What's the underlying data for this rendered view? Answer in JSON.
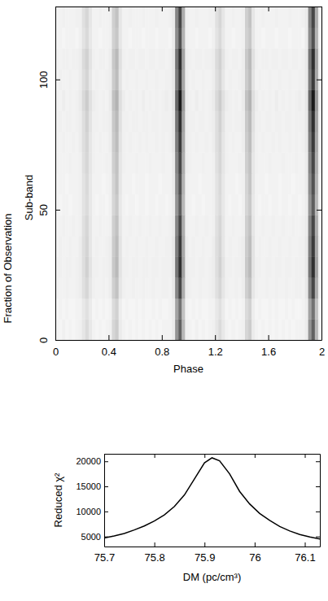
{
  "chart_data": [
    {
      "type": "heatmap",
      "x_label": "Phase",
      "y_label": "Sub-band",
      "side_label": "Fraction of Observation",
      "xlim": [
        0,
        2
      ],
      "ylim": [
        0,
        128
      ],
      "xticks": [
        0,
        0.4,
        0.8,
        1.2,
        1.6,
        2
      ],
      "yticks": [
        0,
        50,
        100
      ],
      "zlim": [
        0,
        1
      ],
      "x_bins": [
        0,
        0.025,
        0.05,
        0.075,
        0.1,
        0.125,
        0.15,
        0.175,
        0.2,
        0.225,
        0.25,
        0.275,
        0.3,
        0.325,
        0.35,
        0.375,
        0.4,
        0.425,
        0.45,
        0.475,
        0.5,
        0.525,
        0.55,
        0.575,
        0.6,
        0.625,
        0.65,
        0.675,
        0.7,
        0.725,
        0.75,
        0.775,
        0.8,
        0.825,
        0.85,
        0.875,
        0.9,
        0.925,
        0.95,
        0.975,
        1
      ],
      "y_bins": [
        0,
        8,
        16,
        24,
        32,
        40,
        48,
        56,
        64,
        72,
        80,
        88,
        96,
        104,
        112,
        120,
        128
      ],
      "cells": [
        [
          0.05,
          0.04,
          0.06,
          0.04,
          0.05,
          0.04,
          0.05,
          0.06,
          0.1,
          0.14,
          0.09,
          0.05,
          0.04,
          0.05,
          0.04,
          0.05,
          0.06,
          0.16,
          0.2,
          0.08,
          0.05,
          0.04,
          0.05,
          0.04,
          0.05,
          0.04,
          0.05,
          0.04,
          0.05,
          0.04,
          0.05,
          0.04,
          0.05,
          0.05,
          0.05,
          0.08,
          0.42,
          0.62,
          0.28,
          0.06
        ],
        [
          0.04,
          0.05,
          0.04,
          0.05,
          0.04,
          0.04,
          0.05,
          0.05,
          0.09,
          0.12,
          0.08,
          0.04,
          0.05,
          0.04,
          0.05,
          0.04,
          0.05,
          0.14,
          0.18,
          0.07,
          0.04,
          0.05,
          0.04,
          0.04,
          0.05,
          0.04,
          0.05,
          0.04,
          0.04,
          0.05,
          0.04,
          0.05,
          0.04,
          0.04,
          0.05,
          0.07,
          0.36,
          0.55,
          0.24,
          0.05
        ],
        [
          0.06,
          0.05,
          0.05,
          0.06,
          0.05,
          0.05,
          0.06,
          0.07,
          0.12,
          0.16,
          0.1,
          0.06,
          0.05,
          0.05,
          0.06,
          0.05,
          0.07,
          0.19,
          0.24,
          0.1,
          0.06,
          0.05,
          0.05,
          0.06,
          0.05,
          0.05,
          0.06,
          0.05,
          0.05,
          0.06,
          0.05,
          0.05,
          0.06,
          0.06,
          0.05,
          0.09,
          0.48,
          0.72,
          0.32,
          0.07
        ],
        [
          0.06,
          0.06,
          0.05,
          0.06,
          0.06,
          0.05,
          0.06,
          0.07,
          0.13,
          0.18,
          0.11,
          0.06,
          0.06,
          0.05,
          0.06,
          0.06,
          0.07,
          0.21,
          0.27,
          0.11,
          0.06,
          0.06,
          0.05,
          0.06,
          0.06,
          0.05,
          0.06,
          0.06,
          0.05,
          0.06,
          0.06,
          0.05,
          0.06,
          0.06,
          0.06,
          0.09,
          0.54,
          0.81,
          0.36,
          0.07
        ],
        [
          0.05,
          0.06,
          0.05,
          0.05,
          0.06,
          0.05,
          0.05,
          0.07,
          0.13,
          0.17,
          0.1,
          0.05,
          0.06,
          0.05,
          0.05,
          0.06,
          0.07,
          0.2,
          0.26,
          0.11,
          0.05,
          0.06,
          0.05,
          0.05,
          0.06,
          0.05,
          0.05,
          0.06,
          0.05,
          0.05,
          0.06,
          0.05,
          0.05,
          0.06,
          0.06,
          0.09,
          0.51,
          0.77,
          0.34,
          0.07
        ],
        [
          0.05,
          0.05,
          0.06,
          0.05,
          0.05,
          0.06,
          0.05,
          0.06,
          0.12,
          0.16,
          0.1,
          0.05,
          0.05,
          0.06,
          0.05,
          0.05,
          0.06,
          0.19,
          0.24,
          0.1,
          0.05,
          0.05,
          0.06,
          0.05,
          0.05,
          0.06,
          0.05,
          0.05,
          0.06,
          0.05,
          0.05,
          0.06,
          0.05,
          0.05,
          0.06,
          0.08,
          0.48,
          0.72,
          0.32,
          0.06
        ],
        [
          0.05,
          0.04,
          0.05,
          0.05,
          0.04,
          0.05,
          0.05,
          0.06,
          0.11,
          0.14,
          0.09,
          0.05,
          0.04,
          0.05,
          0.05,
          0.04,
          0.06,
          0.16,
          0.21,
          0.09,
          0.05,
          0.04,
          0.05,
          0.05,
          0.04,
          0.05,
          0.05,
          0.04,
          0.05,
          0.05,
          0.04,
          0.05,
          0.05,
          0.04,
          0.05,
          0.07,
          0.42,
          0.63,
          0.28,
          0.06
        ],
        [
          0.05,
          0.05,
          0.05,
          0.04,
          0.05,
          0.05,
          0.05,
          0.06,
          0.11,
          0.15,
          0.09,
          0.05,
          0.05,
          0.05,
          0.04,
          0.05,
          0.06,
          0.17,
          0.23,
          0.1,
          0.05,
          0.05,
          0.05,
          0.04,
          0.05,
          0.05,
          0.05,
          0.04,
          0.05,
          0.05,
          0.05,
          0.04,
          0.05,
          0.05,
          0.05,
          0.08,
          0.45,
          0.68,
          0.3,
          0.06
        ],
        [
          0.06,
          0.05,
          0.05,
          0.05,
          0.06,
          0.05,
          0.05,
          0.06,
          0.12,
          0.16,
          0.1,
          0.06,
          0.05,
          0.05,
          0.05,
          0.06,
          0.06,
          0.19,
          0.24,
          0.1,
          0.06,
          0.05,
          0.05,
          0.05,
          0.06,
          0.05,
          0.05,
          0.05,
          0.06,
          0.05,
          0.05,
          0.05,
          0.06,
          0.05,
          0.05,
          0.08,
          0.48,
          0.72,
          0.32,
          0.07
        ],
        [
          0.06,
          0.05,
          0.06,
          0.05,
          0.05,
          0.06,
          0.05,
          0.07,
          0.13,
          0.17,
          0.1,
          0.06,
          0.05,
          0.06,
          0.05,
          0.05,
          0.07,
          0.2,
          0.26,
          0.11,
          0.06,
          0.05,
          0.06,
          0.05,
          0.05,
          0.06,
          0.05,
          0.06,
          0.05,
          0.05,
          0.06,
          0.05,
          0.06,
          0.05,
          0.06,
          0.09,
          0.51,
          0.77,
          0.34,
          0.07
        ],
        [
          0.06,
          0.06,
          0.05,
          0.06,
          0.06,
          0.05,
          0.06,
          0.07,
          0.13,
          0.18,
          0.11,
          0.06,
          0.06,
          0.05,
          0.06,
          0.06,
          0.07,
          0.21,
          0.27,
          0.12,
          0.06,
          0.06,
          0.05,
          0.06,
          0.06,
          0.05,
          0.06,
          0.06,
          0.05,
          0.06,
          0.06,
          0.05,
          0.06,
          0.06,
          0.06,
          0.09,
          0.54,
          0.81,
          0.36,
          0.07
        ],
        [
          0.06,
          0.05,
          0.07,
          0.05,
          0.06,
          0.05,
          0.06,
          0.08,
          0.15,
          0.2,
          0.12,
          0.07,
          0.06,
          0.05,
          0.06,
          0.05,
          0.08,
          0.24,
          0.3,
          0.13,
          0.07,
          0.05,
          0.06,
          0.05,
          0.06,
          0.05,
          0.07,
          0.05,
          0.06,
          0.05,
          0.06,
          0.05,
          0.06,
          0.07,
          0.06,
          0.1,
          0.6,
          0.9,
          0.4,
          0.08
        ],
        [
          0.05,
          0.06,
          0.05,
          0.05,
          0.06,
          0.05,
          0.05,
          0.07,
          0.13,
          0.17,
          0.1,
          0.05,
          0.06,
          0.05,
          0.05,
          0.06,
          0.07,
          0.2,
          0.26,
          0.11,
          0.05,
          0.06,
          0.05,
          0.05,
          0.06,
          0.05,
          0.05,
          0.06,
          0.05,
          0.05,
          0.06,
          0.05,
          0.05,
          0.06,
          0.06,
          0.09,
          0.51,
          0.77,
          0.34,
          0.07
        ],
        [
          0.06,
          0.05,
          0.06,
          0.06,
          0.05,
          0.06,
          0.06,
          0.07,
          0.14,
          0.18,
          0.11,
          0.06,
          0.05,
          0.06,
          0.06,
          0.05,
          0.07,
          0.21,
          0.27,
          0.12,
          0.06,
          0.05,
          0.06,
          0.06,
          0.05,
          0.06,
          0.06,
          0.05,
          0.06,
          0.06,
          0.05,
          0.06,
          0.06,
          0.05,
          0.06,
          0.09,
          0.54,
          0.81,
          0.36,
          0.07
        ],
        [
          0.05,
          0.05,
          0.04,
          0.05,
          0.05,
          0.05,
          0.04,
          0.06,
          0.11,
          0.15,
          0.09,
          0.05,
          0.05,
          0.04,
          0.05,
          0.05,
          0.06,
          0.18,
          0.22,
          0.1,
          0.05,
          0.05,
          0.04,
          0.05,
          0.05,
          0.05,
          0.04,
          0.05,
          0.05,
          0.05,
          0.04,
          0.05,
          0.05,
          0.05,
          0.04,
          0.08,
          0.45,
          0.68,
          0.3,
          0.06
        ],
        [
          0.05,
          0.05,
          0.06,
          0.05,
          0.05,
          0.05,
          0.06,
          0.06,
          0.12,
          0.16,
          0.1,
          0.05,
          0.05,
          0.06,
          0.05,
          0.05,
          0.06,
          0.19,
          0.24,
          0.1,
          0.05,
          0.05,
          0.06,
          0.05,
          0.05,
          0.05,
          0.06,
          0.05,
          0.05,
          0.05,
          0.06,
          0.05,
          0.05,
          0.05,
          0.06,
          0.08,
          0.48,
          0.72,
          0.32,
          0.06
        ]
      ]
    },
    {
      "type": "line",
      "x_label": "DM (pc/cm³)",
      "y_label": "Reduced χ²",
      "color": "#000000",
      "xlim": [
        75.7,
        76.13
      ],
      "ylim": [
        3000,
        21500
      ],
      "xticks": [
        75.7,
        75.8,
        75.9,
        76,
        76.1
      ],
      "yticks": [
        5000,
        10000,
        15000,
        20000
      ],
      "x": [
        75.7,
        75.72,
        75.74,
        75.76,
        75.78,
        75.8,
        75.82,
        75.84,
        75.86,
        75.88,
        75.9,
        75.915,
        75.93,
        75.95,
        75.97,
        75.99,
        76.01,
        76.03,
        76.05,
        76.07,
        76.09,
        76.11,
        76.13
      ],
      "values": [
        4700,
        5100,
        5600,
        6300,
        7100,
        8100,
        9300,
        11000,
        13300,
        16500,
        19700,
        20700,
        20100,
        17500,
        14000,
        11500,
        9600,
        8200,
        7000,
        6100,
        5400,
        4900,
        4500
      ]
    }
  ]
}
